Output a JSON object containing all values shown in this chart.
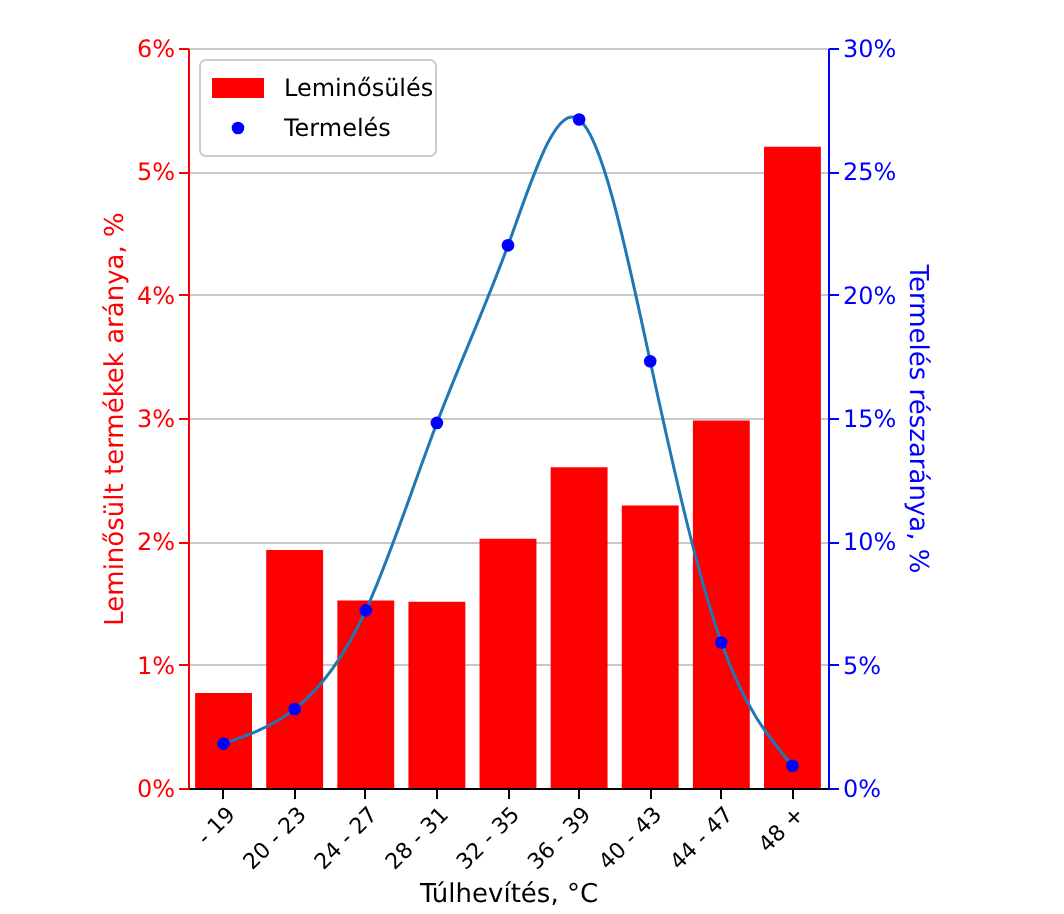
{
  "chart_data": {
    "type": "bar",
    "xlabel": "Túlhevítés, °C",
    "ylabel": "Leminősült termékek aránya, %",
    "y2label": "Termelés részaránya, %",
    "categories": [
      "- 19",
      "20 - 23",
      "24 - 27",
      "28 - 31",
      "32 - 35",
      "36 - 39",
      "40 - 43",
      "44 - 47",
      "48 +"
    ],
    "series": [
      {
        "name": "Leminősülés",
        "color": "#ff0000",
        "values": [
          0.77,
          1.93,
          1.52,
          1.51,
          2.02,
          2.6,
          2.29,
          2.98,
          5.2
        ]
      },
      {
        "type": "line",
        "axis": "y2",
        "marker": "none",
        "color": "#1f77b4",
        "values": [
          1.8,
          3.2,
          7.2,
          14.8,
          22.0,
          27.1,
          17.3,
          5.9,
          0.9
        ]
      },
      {
        "name": "Termelés",
        "type": "scatter",
        "axis": "y2",
        "marker": "circle",
        "color": "#0000ff",
        "values": [
          1.8,
          3.2,
          7.2,
          14.8,
          22.0,
          27.1,
          17.3,
          5.9,
          0.9
        ]
      }
    ],
    "ylim": [
      0,
      6
    ],
    "yticks": [
      {
        "value": 0,
        "label": "0%"
      },
      {
        "value": 1,
        "label": "1%"
      },
      {
        "value": 2,
        "label": "2%"
      },
      {
        "value": 3,
        "label": "3%"
      },
      {
        "value": 4,
        "label": "4%"
      },
      {
        "value": 5,
        "label": "5%"
      },
      {
        "value": 6,
        "label": "6%"
      }
    ],
    "y2lim": [
      0,
      30
    ],
    "y2ticks": [
      {
        "value": 0,
        "label": "0%"
      },
      {
        "value": 5,
        "label": "5%"
      },
      {
        "value": 10,
        "label": "10%"
      },
      {
        "value": 15,
        "label": "15%"
      },
      {
        "value": 20,
        "label": "20%"
      },
      {
        "value": 25,
        "label": "25%"
      },
      {
        "value": 30,
        "label": "30%"
      }
    ],
    "grid": "y",
    "legend": "top left"
  }
}
